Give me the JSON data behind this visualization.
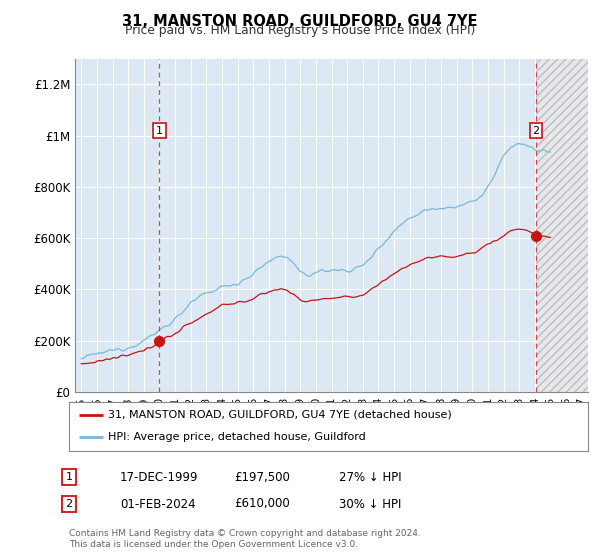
{
  "title": "31, MANSTON ROAD, GUILDFORD, GU4 7YE",
  "subtitle": "Price paid vs. HM Land Registry's House Price Index (HPI)",
  "legend_line1": "31, MANSTON ROAD, GUILDFORD, GU4 7YE (detached house)",
  "legend_line2": "HPI: Average price, detached house, Guildford",
  "transaction1_date": "17-DEC-1999",
  "transaction1_price": "£197,500",
  "transaction1_hpi": "27% ↓ HPI",
  "transaction2_date": "01-FEB-2024",
  "transaction2_price": "£610,000",
  "transaction2_hpi": "30% ↓ HPI",
  "footer": "Contains HM Land Registry data © Crown copyright and database right 2024.\nThis data is licensed under the Open Government Licence v3.0.",
  "hpi_color": "#7bb8d8",
  "price_color": "#cc1111",
  "marker_color": "#cc1111",
  "dashed_line_color": "#dd4444",
  "bg_color": "#dce9f5",
  "grid_color": "#ffffff",
  "ylim": [
    0,
    1300000
  ],
  "yticks": [
    0,
    200000,
    400000,
    600000,
    800000,
    1000000,
    1200000
  ],
  "ytick_labels": [
    "£0",
    "£200K",
    "£400K",
    "£600K",
    "£800K",
    "£1M",
    "£1.2M"
  ],
  "transaction1_year": 2000.0,
  "transaction1_price_val": 197500,
  "transaction2_year": 2024.08,
  "transaction2_price_val": 610000,
  "xstart": 1994.6,
  "xend": 2027.4
}
